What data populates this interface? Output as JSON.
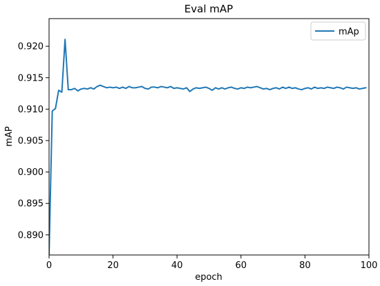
{
  "chart_data": {
    "type": "line",
    "title": "Eval mAP",
    "xlabel": "epoch",
    "ylabel": "mAP",
    "xlim": [
      0,
      100
    ],
    "ylim": [
      0.8868,
      0.9244
    ],
    "xticks": [
      0,
      20,
      40,
      60,
      80,
      100
    ],
    "yticks": [
      0.89,
      0.895,
      0.9,
      0.905,
      0.91,
      0.915,
      0.92
    ],
    "ytick_labels": [
      "0.890",
      "0.895",
      "0.900",
      "0.905",
      "0.910",
      "0.915",
      "0.920"
    ],
    "grid": false,
    "legend": "top-right",
    "series": [
      {
        "name": "mAp",
        "color": "#1f77b4",
        "x": [
          0,
          1,
          2,
          3,
          4,
          5,
          6,
          7,
          8,
          9,
          10,
          11,
          12,
          13,
          14,
          15,
          16,
          17,
          18,
          19,
          20,
          21,
          22,
          23,
          24,
          25,
          26,
          27,
          28,
          29,
          30,
          31,
          32,
          33,
          34,
          35,
          36,
          37,
          38,
          39,
          40,
          41,
          42,
          43,
          44,
          45,
          46,
          47,
          48,
          49,
          50,
          51,
          52,
          53,
          54,
          55,
          56,
          57,
          58,
          59,
          60,
          61,
          62,
          63,
          64,
          65,
          66,
          67,
          68,
          69,
          70,
          71,
          72,
          73,
          74,
          75,
          76,
          77,
          78,
          79,
          80,
          81,
          82,
          83,
          84,
          85,
          86,
          87,
          88,
          89,
          90,
          91,
          92,
          93,
          94,
          95,
          96,
          97,
          98,
          99
        ],
        "values": [
          0.8868,
          0.9097,
          0.9101,
          0.913,
          0.9127,
          0.9211,
          0.9131,
          0.9131,
          0.9133,
          0.9129,
          0.9132,
          0.9133,
          0.9132,
          0.9134,
          0.9132,
          0.9136,
          0.9138,
          0.9136,
          0.9134,
          0.9135,
          0.9134,
          0.9135,
          0.9133,
          0.9135,
          0.9133,
          0.9136,
          0.9134,
          0.9134,
          0.9135,
          0.9136,
          0.9133,
          0.9132,
          0.9135,
          0.9135,
          0.9134,
          0.9136,
          0.9135,
          0.9134,
          0.9136,
          0.9133,
          0.9134,
          0.9133,
          0.9132,
          0.9134,
          0.9128,
          0.9132,
          0.9134,
          0.9133,
          0.9134,
          0.9135,
          0.9133,
          0.913,
          0.9134,
          0.9132,
          0.9134,
          0.9132,
          0.9134,
          0.9135,
          0.9133,
          0.9132,
          0.9134,
          0.9133,
          0.9135,
          0.9134,
          0.9135,
          0.9136,
          0.9134,
          0.9132,
          0.9133,
          0.9131,
          0.9133,
          0.9134,
          0.9132,
          0.9135,
          0.9133,
          0.9135,
          0.9133,
          0.9134,
          0.9132,
          0.9131,
          0.9133,
          0.9134,
          0.9132,
          0.9135,
          0.9133,
          0.9134,
          0.9133,
          0.9135,
          0.9134,
          0.9133,
          0.9135,
          0.9134,
          0.9132,
          0.9135,
          0.9134,
          0.9133,
          0.9134,
          0.9132,
          0.9133,
          0.9134
        ]
      }
    ]
  }
}
